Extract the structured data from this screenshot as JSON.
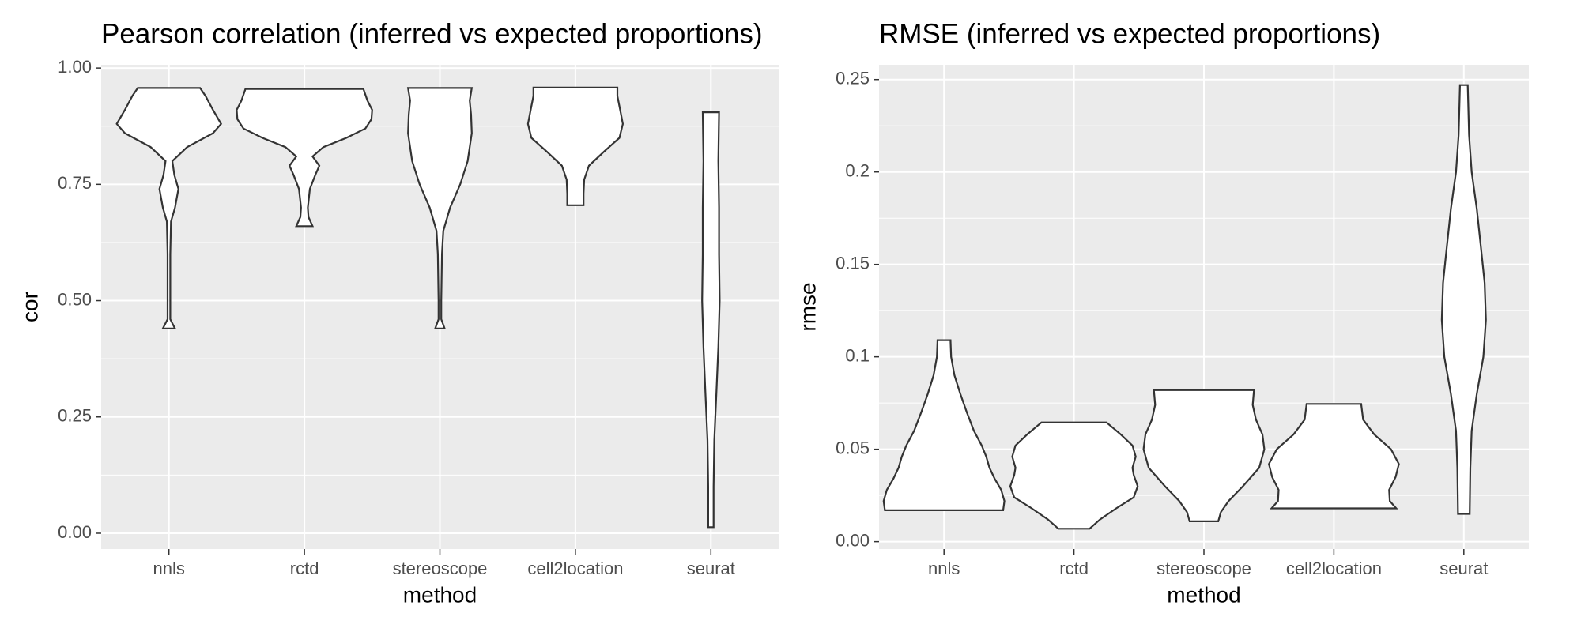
{
  "chart_data": [
    {
      "type": "violin",
      "title": "Pearson correlation (inferred vs expected proportions)",
      "x_label": "method",
      "y_label": "cor",
      "categories": [
        "nnls",
        "rctd",
        "stereoscope",
        "cell2location",
        "seurat"
      ],
      "fill": "#ffffff",
      "outline": "#333333",
      "grid": true,
      "ylim": [
        -0.034,
        1.007
      ],
      "yticks": [
        {
          "value": 0,
          "label": "0.00"
        },
        {
          "value": 0.25,
          "label": "0.25"
        },
        {
          "value": 0.5,
          "label": "0.50"
        },
        {
          "value": 0.75,
          "label": "0.75"
        },
        {
          "value": 1,
          "label": "1.00"
        }
      ],
      "violins": [
        {
          "y": [
            0.44,
            0.46,
            0.5,
            0.6,
            0.67,
            0.7,
            0.74,
            0.77,
            0.8,
            0.83,
            0.86,
            0.88,
            0.91,
            0.94,
            0.957
          ],
          "width": [
            0.09,
            0.02,
            0.02,
            0.02,
            0.03,
            0.09,
            0.14,
            0.08,
            0.05,
            0.27,
            0.65,
            0.77,
            0.65,
            0.54,
            0.46
          ]
        },
        {
          "y": [
            0.66,
            0.68,
            0.7,
            0.74,
            0.77,
            0.79,
            0.81,
            0.83,
            0.85,
            0.87,
            0.89,
            0.91,
            0.93,
            0.955
          ],
          "width": [
            0.12,
            0.06,
            0.05,
            0.08,
            0.16,
            0.22,
            0.12,
            0.28,
            0.62,
            0.9,
            0.99,
            1.0,
            0.93,
            0.87
          ]
        },
        {
          "y": [
            0.44,
            0.46,
            0.5,
            0.6,
            0.65,
            0.7,
            0.75,
            0.8,
            0.86,
            0.9,
            0.93,
            0.957
          ],
          "width": [
            0.07,
            0.02,
            0.02,
            0.03,
            0.05,
            0.15,
            0.3,
            0.41,
            0.47,
            0.46,
            0.44,
            0.47
          ]
        },
        {
          "y": [
            0.705,
            0.73,
            0.76,
            0.79,
            0.82,
            0.85,
            0.88,
            0.91,
            0.94,
            0.958
          ],
          "width": [
            0.12,
            0.12,
            0.13,
            0.2,
            0.42,
            0.65,
            0.7,
            0.66,
            0.62,
            0.62
          ]
        },
        {
          "y": [
            0.013,
            0.1,
            0.2,
            0.3,
            0.4,
            0.5,
            0.6,
            0.7,
            0.8,
            0.905
          ],
          "width": [
            0.04,
            0.04,
            0.05,
            0.08,
            0.11,
            0.13,
            0.12,
            0.12,
            0.11,
            0.12
          ]
        }
      ]
    },
    {
      "type": "violin",
      "title": "RMSE (inferred vs expected proportions)",
      "x_label": "method",
      "y_label": "rmse",
      "categories": [
        "nnls",
        "rctd",
        "stereoscope",
        "cell2location",
        "seurat"
      ],
      "fill": "#ffffff",
      "outline": "#333333",
      "grid": true,
      "ylim": [
        -0.004,
        0.258
      ],
      "yticks": [
        {
          "value": 0,
          "label": "0.00"
        },
        {
          "value": 0.05,
          "label": "0.05"
        },
        0.1,
        0.15,
        0.2,
        0.25
      ],
      "violins": [
        {
          "y": [
            0.017,
            0.022,
            0.028,
            0.034,
            0.04,
            0.046,
            0.052,
            0.06,
            0.07,
            0.08,
            0.09,
            0.1,
            0.109
          ],
          "width": [
            0.91,
            0.93,
            0.88,
            0.78,
            0.7,
            0.65,
            0.58,
            0.46,
            0.35,
            0.25,
            0.16,
            0.11,
            0.1
          ]
        },
        {
          "y": [
            0.007,
            0.012,
            0.018,
            0.024,
            0.03,
            0.036,
            0.04,
            0.046,
            0.052,
            0.058,
            0.0645
          ],
          "width": [
            0.24,
            0.4,
            0.65,
            0.92,
            0.98,
            0.92,
            0.9,
            0.95,
            0.9,
            0.72,
            0.5
          ]
        },
        {
          "y": [
            0.011,
            0.016,
            0.022,
            0.03,
            0.04,
            0.05,
            0.058,
            0.066,
            0.074,
            0.082
          ],
          "width": [
            0.22,
            0.26,
            0.38,
            0.6,
            0.85,
            0.93,
            0.9,
            0.8,
            0.75,
            0.77
          ]
        },
        {
          "y": [
            0.018,
            0.022,
            0.028,
            0.035,
            0.042,
            0.05,
            0.058,
            0.066,
            0.0745
          ],
          "width": [
            0.96,
            0.86,
            0.85,
            0.95,
            1.0,
            0.88,
            0.62,
            0.45,
            0.42
          ]
        },
        {
          "y": [
            0.015,
            0.04,
            0.06,
            0.08,
            0.1,
            0.12,
            0.14,
            0.16,
            0.18,
            0.2,
            0.22,
            0.247
          ],
          "width": [
            0.09,
            0.1,
            0.12,
            0.2,
            0.3,
            0.34,
            0.32,
            0.26,
            0.2,
            0.12,
            0.08,
            0.06
          ]
        }
      ]
    }
  ]
}
